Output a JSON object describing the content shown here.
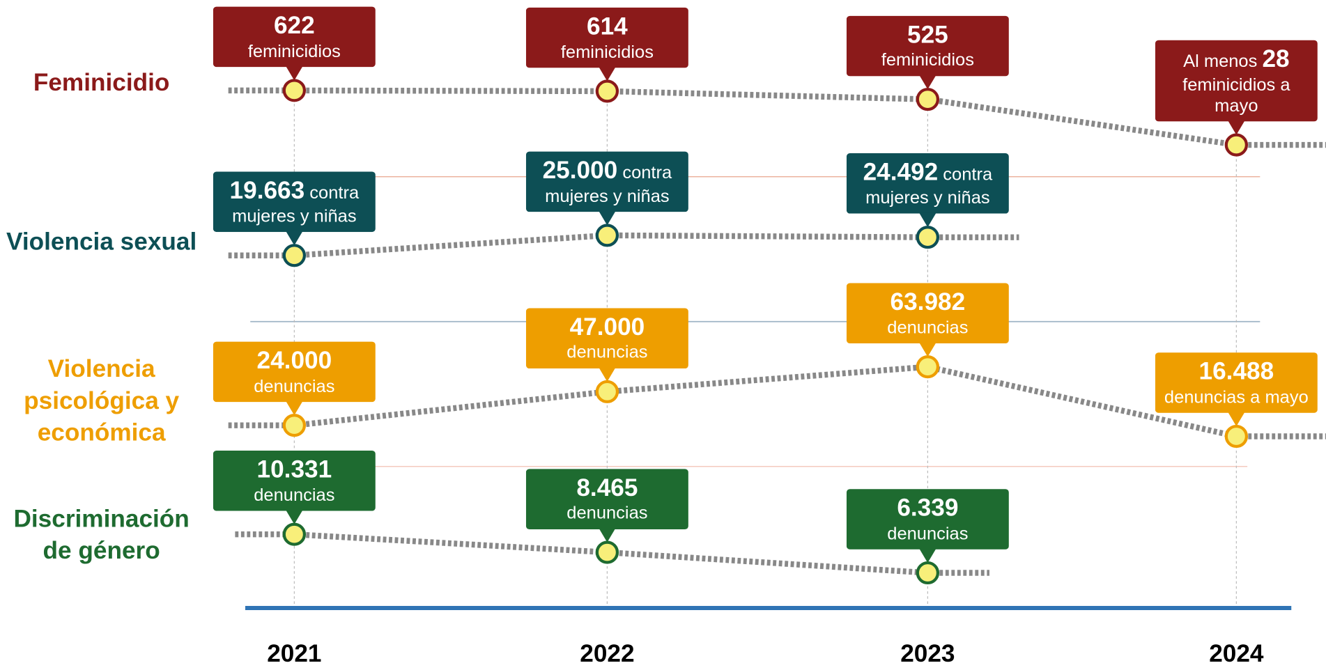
{
  "chart_data": {
    "type": "line",
    "categories": [
      "2021",
      "2022",
      "2023",
      "2024"
    ],
    "series": [
      {
        "name": "Feminicidio",
        "color": "#8b1a1a",
        "values": [
          622,
          614,
          525,
          28
        ],
        "value_labels": [
          "622",
          "614",
          "525",
          "28"
        ],
        "captions": [
          "feminicidios",
          "feminicidios",
          "feminicidios",
          "feminicidios a mayo"
        ],
        "label_prefixes": [
          null,
          null,
          null,
          "Al menos"
        ]
      },
      {
        "name": "Violencia sexual",
        "color": "#0d4f55",
        "values": [
          19663,
          25000,
          24492,
          null
        ],
        "value_labels": [
          "19.663",
          "25.000",
          "24.492",
          null
        ],
        "captions": [
          "contra mujeres y niñas",
          "contra mujeres y niñas",
          "contra mujeres y niñas",
          null
        ]
      },
      {
        "name": "Violencia psicológica y económica",
        "color": "#ee9e00",
        "values": [
          24000,
          47000,
          63982,
          16488
        ],
        "value_labels": [
          "24.000",
          "47.000",
          "63.982",
          "16.488"
        ],
        "captions": [
          "denuncias",
          "denuncias",
          "denuncias",
          "denuncias a mayo"
        ]
      },
      {
        "name": "Discriminación de género",
        "color": "#1e6b30",
        "values": [
          10331,
          8465,
          6339,
          null
        ],
        "value_labels": [
          "10.331",
          "8.465",
          "6.339",
          null
        ],
        "captions": [
          "denuncias",
          "denuncias",
          "denuncias",
          null
        ]
      }
    ]
  }
}
